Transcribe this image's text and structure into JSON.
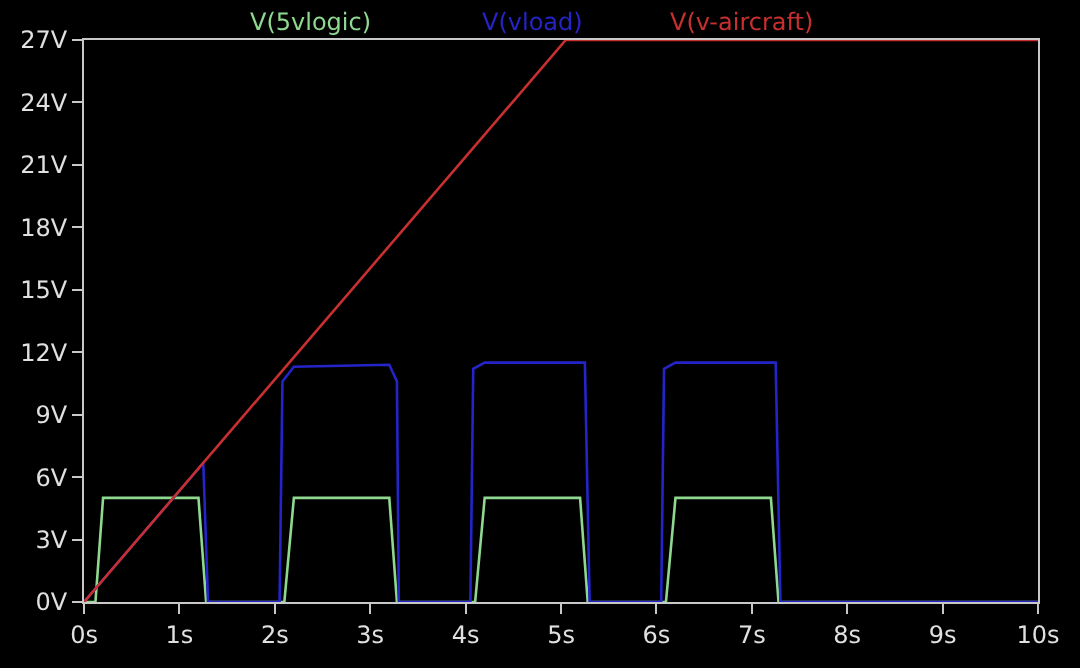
{
  "chart_data": {
    "type": "line",
    "xlim": [
      0,
      10
    ],
    "ylim": [
      0,
      27
    ],
    "xticks": [
      {
        "value": 0,
        "label": "0s"
      },
      {
        "value": 1,
        "label": "1s"
      },
      {
        "value": 2,
        "label": "2s"
      },
      {
        "value": 3,
        "label": "3s"
      },
      {
        "value": 4,
        "label": "4s"
      },
      {
        "value": 5,
        "label": "5s"
      },
      {
        "value": 6,
        "label": "6s"
      },
      {
        "value": 7,
        "label": "7s"
      },
      {
        "value": 8,
        "label": "8s"
      },
      {
        "value": 9,
        "label": "9s"
      },
      {
        "value": 10,
        "label": "10s"
      }
    ],
    "yticks": [
      {
        "value": 0,
        "label": "0V"
      },
      {
        "value": 3,
        "label": "3V"
      },
      {
        "value": 6,
        "label": "6V"
      },
      {
        "value": 9,
        "label": "9V"
      },
      {
        "value": 12,
        "label": "12V"
      },
      {
        "value": 15,
        "label": "15V"
      },
      {
        "value": 18,
        "label": "18V"
      },
      {
        "value": 21,
        "label": "21V"
      },
      {
        "value": 24,
        "label": "24V"
      },
      {
        "value": 27,
        "label": "27V"
      }
    ],
    "grid": false,
    "series": [
      {
        "name": "V(5vlogic)",
        "color": "#8fd88f",
        "x": [
          0,
          0.12,
          0.2,
          1.2,
          1.28,
          2.1,
          2.2,
          3.2,
          3.28,
          4.1,
          4.2,
          5.2,
          5.28,
          6.1,
          6.2,
          7.2,
          7.28,
          10
        ],
        "values": [
          0,
          0,
          5,
          5,
          0,
          0,
          5,
          5,
          0,
          0,
          5,
          5,
          0,
          0,
          5,
          5,
          0,
          0
        ]
      },
      {
        "name": "V(vload)",
        "color": "#2424c8",
        "x": [
          0,
          1.2,
          1.25,
          1.3,
          2.05,
          2.08,
          2.2,
          3.2,
          3.28,
          3.3,
          4.05,
          4.08,
          4.2,
          5.25,
          5.3,
          6.05,
          6.08,
          6.2,
          7.25,
          7.3,
          10
        ],
        "values": [
          0,
          6.4,
          6.7,
          0,
          0,
          10.6,
          11.3,
          11.4,
          10.6,
          0,
          0,
          11.2,
          11.5,
          11.5,
          0,
          0,
          11.2,
          11.5,
          11.5,
          0,
          0
        ]
      },
      {
        "name": "V(v-aircraft)",
        "color": "#c83030",
        "x": [
          0,
          5.05,
          10
        ],
        "values": [
          0,
          27,
          27
        ]
      }
    ]
  }
}
